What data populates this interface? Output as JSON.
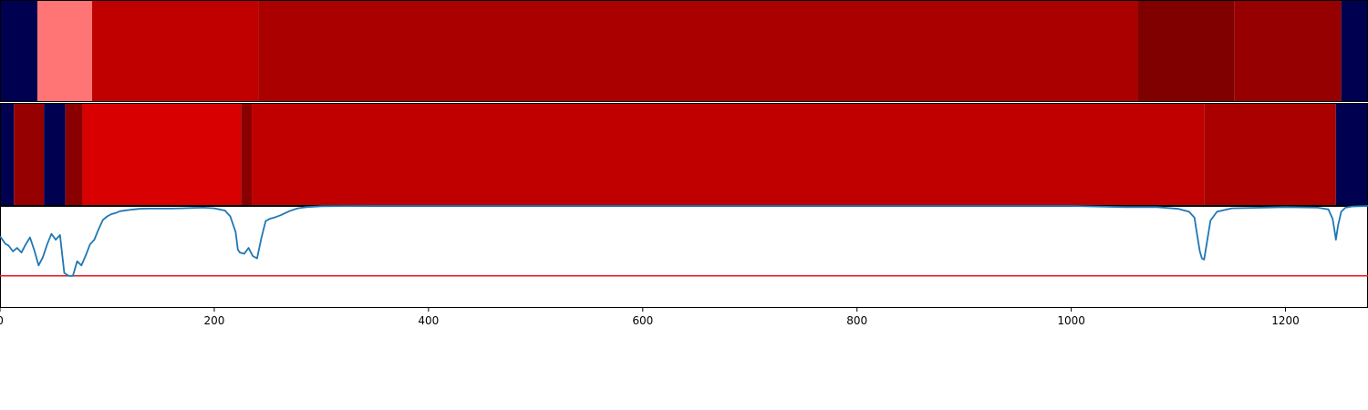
{
  "chart_data": [
    {
      "type": "heatmap",
      "segments": [
        {
          "start": 0,
          "end": 35,
          "color": "#000050"
        },
        {
          "start": 35,
          "end": 86,
          "color": "#ff7575"
        },
        {
          "start": 86,
          "end": 241,
          "color": "#c00000"
        },
        {
          "start": 241,
          "end": 1062,
          "color": "#aa0000"
        },
        {
          "start": 1062,
          "end": 1152,
          "color": "#800000"
        },
        {
          "start": 1152,
          "end": 1252,
          "color": "#960000"
        },
        {
          "start": 1252,
          "end": 1277,
          "color": "#000050"
        }
      ]
    },
    {
      "type": "heatmap",
      "segments": [
        {
          "start": 0,
          "end": 13,
          "color": "#000050"
        },
        {
          "start": 13,
          "end": 41,
          "color": "#960000"
        },
        {
          "start": 41,
          "end": 61,
          "color": "#000050"
        },
        {
          "start": 61,
          "end": 77,
          "color": "#8a0000"
        },
        {
          "start": 77,
          "end": 225,
          "color": "#d80000"
        },
        {
          "start": 225,
          "end": 235,
          "color": "#8a0000"
        },
        {
          "start": 235,
          "end": 1124,
          "color": "#c00000"
        },
        {
          "start": 1124,
          "end": 1247,
          "color": "#aa0000"
        },
        {
          "start": 1247,
          "end": 1277,
          "color": "#000050"
        }
      ]
    },
    {
      "type": "line",
      "xlim": [
        0,
        1277
      ],
      "ylim": [
        -1.75,
        0.0
      ],
      "xticks": [
        "0",
        "200",
        "400",
        "600",
        "800",
        "1000",
        "1200"
      ],
      "threshold": {
        "value": -1.2,
        "color": "#e41a1c"
      },
      "series": [
        {
          "color": "#1f77b4",
          "x": [
            0,
            5,
            8,
            12,
            16,
            20,
            24,
            28,
            32,
            36,
            40,
            44,
            48,
            52,
            56,
            60,
            64,
            68,
            72,
            76,
            80,
            84,
            88,
            92,
            96,
            100,
            104,
            108,
            112,
            120,
            130,
            140,
            150,
            160,
            170,
            180,
            190,
            200,
            210,
            215,
            220,
            222,
            224,
            228,
            232,
            236,
            240,
            244,
            248,
            252,
            256,
            262,
            270,
            278,
            286,
            300,
            350,
            1000,
            1050,
            1080,
            1100,
            1110,
            1115,
            1118,
            1120,
            1122,
            1124,
            1126,
            1130,
            1136,
            1150,
            1200,
            1230,
            1240,
            1244,
            1246,
            1247,
            1249,
            1252,
            1256,
            1262,
            1277
          ],
          "y": [
            -0.52,
            -0.65,
            -0.68,
            -0.78,
            -0.72,
            -0.8,
            -0.66,
            -0.54,
            -0.76,
            -1.02,
            -0.88,
            -0.66,
            -0.48,
            -0.58,
            -0.5,
            -1.15,
            -1.2,
            -1.2,
            -0.95,
            -1.02,
            -0.85,
            -0.66,
            -0.58,
            -0.4,
            -0.24,
            -0.18,
            -0.14,
            -0.12,
            -0.09,
            -0.07,
            -0.05,
            -0.045,
            -0.045,
            -0.045,
            -0.04,
            -0.035,
            -0.03,
            -0.04,
            -0.08,
            -0.18,
            -0.45,
            -0.75,
            -0.8,
            -0.82,
            -0.72,
            -0.86,
            -0.9,
            -0.55,
            -0.26,
            -0.22,
            -0.2,
            -0.16,
            -0.09,
            -0.04,
            -0.02,
            -0.005,
            0.0,
            0.0,
            -0.02,
            -0.02,
            -0.05,
            -0.1,
            -0.2,
            -0.55,
            -0.78,
            -0.9,
            -0.92,
            -0.7,
            -0.25,
            -0.1,
            -0.04,
            -0.02,
            -0.03,
            -0.06,
            -0.22,
            -0.45,
            -0.58,
            -0.34,
            -0.1,
            -0.03,
            -0.01,
            0.0
          ]
        }
      ]
    }
  ]
}
